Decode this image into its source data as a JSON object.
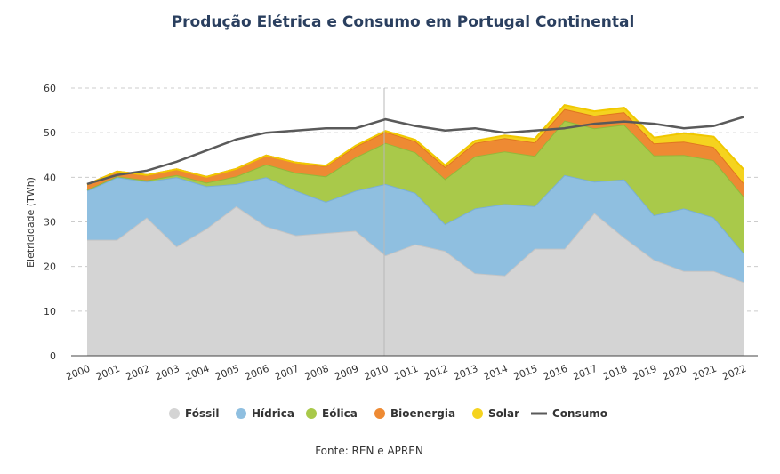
{
  "chart_data": {
    "type": "area",
    "stacked": true,
    "title": "Produção Elétrica e Consumo em Portugal Continental",
    "ylabel": "Eletricidade (TWh)",
    "xlabel": "",
    "ylim": [
      0,
      60
    ],
    "yticks": [
      0,
      10,
      20,
      30,
      40,
      50,
      60
    ],
    "grid": true,
    "legend": "bottom",
    "source": "Fonte: REN e APREN",
    "categories": [
      "2000",
      "2001",
      "2002",
      "2003",
      "2004",
      "2005",
      "2006",
      "2007",
      "2008",
      "2009",
      "2010",
      "2011",
      "2012",
      "2013",
      "2014",
      "2015",
      "2016",
      "2017",
      "2018",
      "2019",
      "2020",
      "2021",
      "2022"
    ],
    "series": [
      {
        "name": "Fóssil",
        "kind": "area",
        "color": "#d4d4d4",
        "line": "#c4c4c4",
        "values": [
          26,
          26,
          31,
          24.5,
          28.5,
          33.5,
          29,
          27,
          27.5,
          28,
          22.5,
          25,
          23.5,
          18.5,
          18,
          24,
          24,
          32,
          26.5,
          21.5,
          19,
          19,
          16.5
        ]
      },
      {
        "name": "Hídrica",
        "kind": "area",
        "color": "#8fbfe0",
        "line": "#7aafd5",
        "values": [
          11,
          14,
          8,
          15.5,
          9.5,
          5,
          11,
          10,
          7,
          9,
          16,
          11.5,
          6,
          14.5,
          16,
          9.5,
          16.5,
          7,
          13,
          10,
          14,
          12,
          6.5
        ]
      },
      {
        "name": "Eólica",
        "kind": "area",
        "color": "#a9c94a",
        "line": "#93b83a",
        "values": [
          0.2,
          0.2,
          0.3,
          0.5,
          0.8,
          1.7,
          2.9,
          4,
          5.7,
          7.5,
          9.2,
          9.1,
          10.1,
          11.7,
          11.8,
          11.3,
          12.2,
          12,
          12.3,
          13.4,
          12,
          12.8,
          12.7
        ]
      },
      {
        "name": "Bioenergia",
        "kind": "area",
        "color": "#ee8a33",
        "line": "#e0761f",
        "values": [
          1.2,
          1.1,
          1.2,
          1.3,
          1.3,
          1.7,
          2,
          2.3,
          2.3,
          2.4,
          2.5,
          2.5,
          2.7,
          3,
          3,
          3,
          2.6,
          2.8,
          2.8,
          2.7,
          3,
          3,
          3
        ]
      },
      {
        "name": "Solar",
        "kind": "area",
        "color": "#f5d31f",
        "line": "#f0c800",
        "values": [
          0,
          0,
          0,
          0,
          0,
          0,
          0,
          0,
          0.1,
          0.2,
          0.2,
          0.3,
          0.4,
          0.5,
          0.6,
          0.8,
          0.9,
          1,
          1,
          1.3,
          1.9,
          2.3,
          3.1
        ]
      },
      {
        "name": "Consumo",
        "kind": "line",
        "color": "#5a5a5a",
        "values": [
          38.5,
          40.5,
          41.5,
          43.5,
          46,
          48.5,
          50,
          50.5,
          51,
          51,
          53,
          51.5,
          50.5,
          51,
          50,
          50.5,
          51,
          52,
          52.5,
          52,
          51,
          51.5,
          53.5
        ]
      }
    ]
  }
}
